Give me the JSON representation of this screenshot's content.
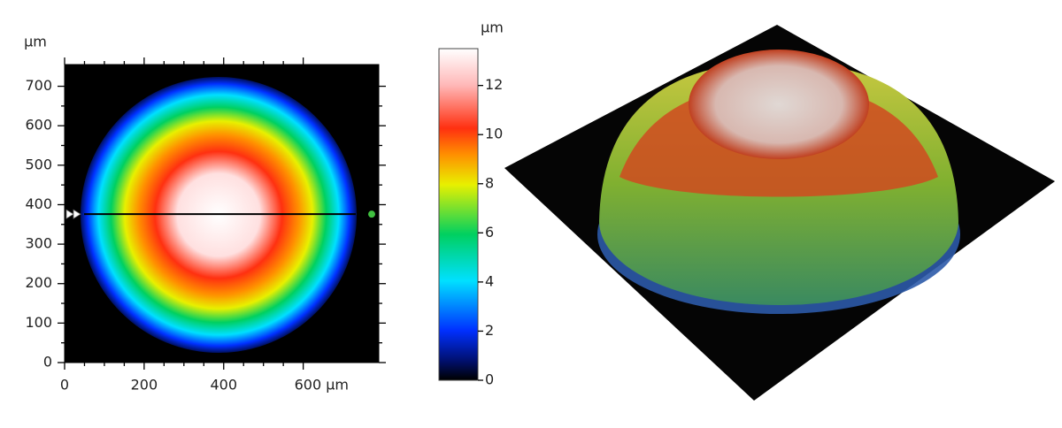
{
  "chart_data": {
    "type": "heatmap",
    "ylabel": "µm",
    "xlim": [
      0,
      790
    ],
    "ylim": [
      0,
      755
    ],
    "xticks": [
      0,
      200,
      400,
      {
        "value": 600,
        "label": "600 µm"
      }
    ],
    "yticks": [
      0,
      100,
      200,
      300,
      400,
      500,
      600,
      700
    ],
    "profile_line": {
      "y": 376
    },
    "colorbar": {
      "label": "µm",
      "lim": [
        0,
        13.5
      ],
      "ticks": [
        0,
        2,
        4,
        6,
        8,
        10,
        12
      ]
    }
  }
}
